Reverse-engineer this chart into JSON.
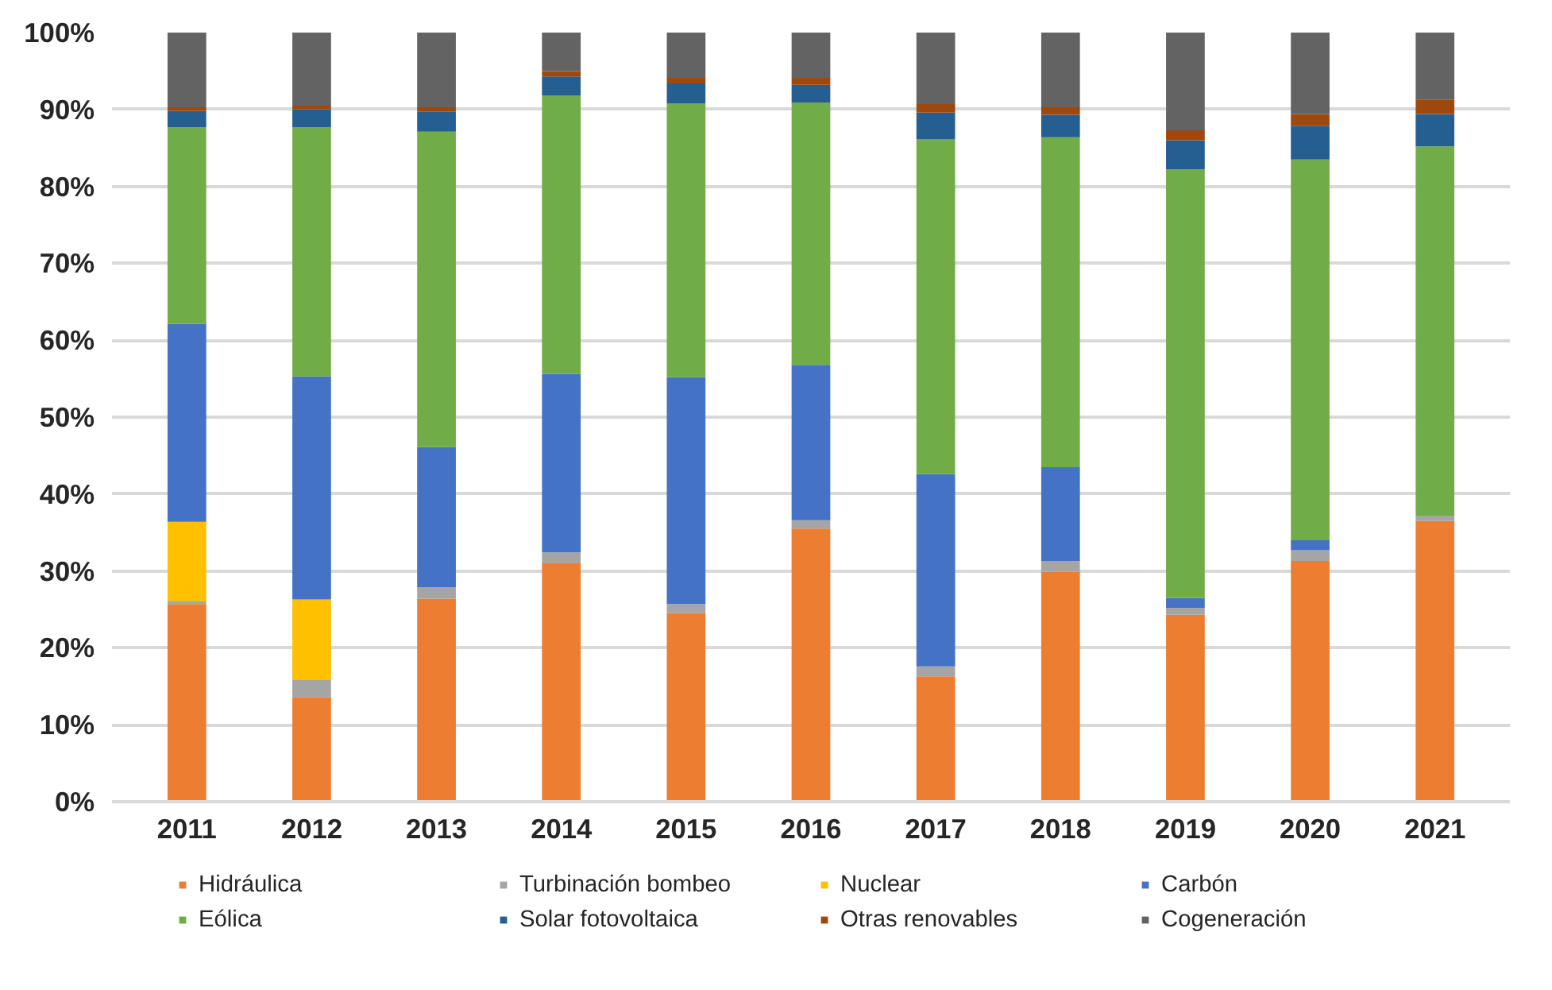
{
  "chart_data": {
    "type": "bar",
    "stacked": true,
    "categories": [
      "2011",
      "2012",
      "2013",
      "2014",
      "2015",
      "2016",
      "2017",
      "2018",
      "2019",
      "2020",
      "2021"
    ],
    "series": [
      {
        "name": "Hidráulica",
        "color": "#ed7d31",
        "values": [
          25.7,
          13.6,
          26.4,
          31.0,
          24.5,
          35.5,
          16.3,
          29.9,
          24.3,
          31.3,
          36.5
        ]
      },
      {
        "name": "Turbinación bombeo",
        "color": "#a5a5a5",
        "values": [
          0.4,
          2.2,
          1.5,
          1.4,
          1.2,
          1.1,
          1.3,
          1.4,
          0.9,
          1.4,
          0.7
        ]
      },
      {
        "name": "Nuclear",
        "color": "#ffc000",
        "values": [
          10.3,
          10.5,
          0,
          0,
          0,
          0,
          0,
          0,
          0,
          0,
          0
        ]
      },
      {
        "name": "Carbón",
        "color": "#4472c4",
        "values": [
          25.7,
          29.0,
          18.2,
          23.2,
          29.5,
          20.2,
          25.0,
          12.2,
          1.3,
          1.3,
          0
        ]
      },
      {
        "name": "Eólica",
        "color": "#70ad47",
        "values": [
          25.6,
          32.4,
          41.0,
          36.2,
          35.6,
          34.1,
          43.5,
          42.9,
          55.7,
          49.5,
          48.0
        ]
      },
      {
        "name": "Solar fotovoltaica",
        "color": "#255e91",
        "values": [
          2.1,
          2.3,
          2.6,
          2.5,
          2.6,
          2.3,
          3.5,
          2.9,
          3.8,
          4.4,
          4.2
        ]
      },
      {
        "name": "Otras renovables",
        "color": "#9e480e",
        "values": [
          0.5,
          0.5,
          0.6,
          0.7,
          0.7,
          0.9,
          1.1,
          1.0,
          1.3,
          1.5,
          1.9
        ]
      },
      {
        "name": "Cogeneración",
        "color": "#636363",
        "values": [
          9.7,
          9.5,
          9.7,
          5.0,
          5.9,
          5.9,
          9.3,
          9.7,
          12.7,
          10.6,
          8.7
        ]
      }
    ],
    "ylim": [
      0,
      100
    ],
    "yticks": [
      {
        "value": 0,
        "label": "0%"
      },
      {
        "value": 10,
        "label": "10%"
      },
      {
        "value": 20,
        "label": "20%"
      },
      {
        "value": 30,
        "label": "30%"
      },
      {
        "value": 40,
        "label": "40%"
      },
      {
        "value": 50,
        "label": "50%"
      },
      {
        "value": 60,
        "label": "60%"
      },
      {
        "value": 70,
        "label": "70%"
      },
      {
        "value": 80,
        "label": "80%"
      },
      {
        "value": 90,
        "label": "90%"
      },
      {
        "value": 100,
        "label": "100%"
      }
    ],
    "grid": "y",
    "legend": "bottom"
  }
}
